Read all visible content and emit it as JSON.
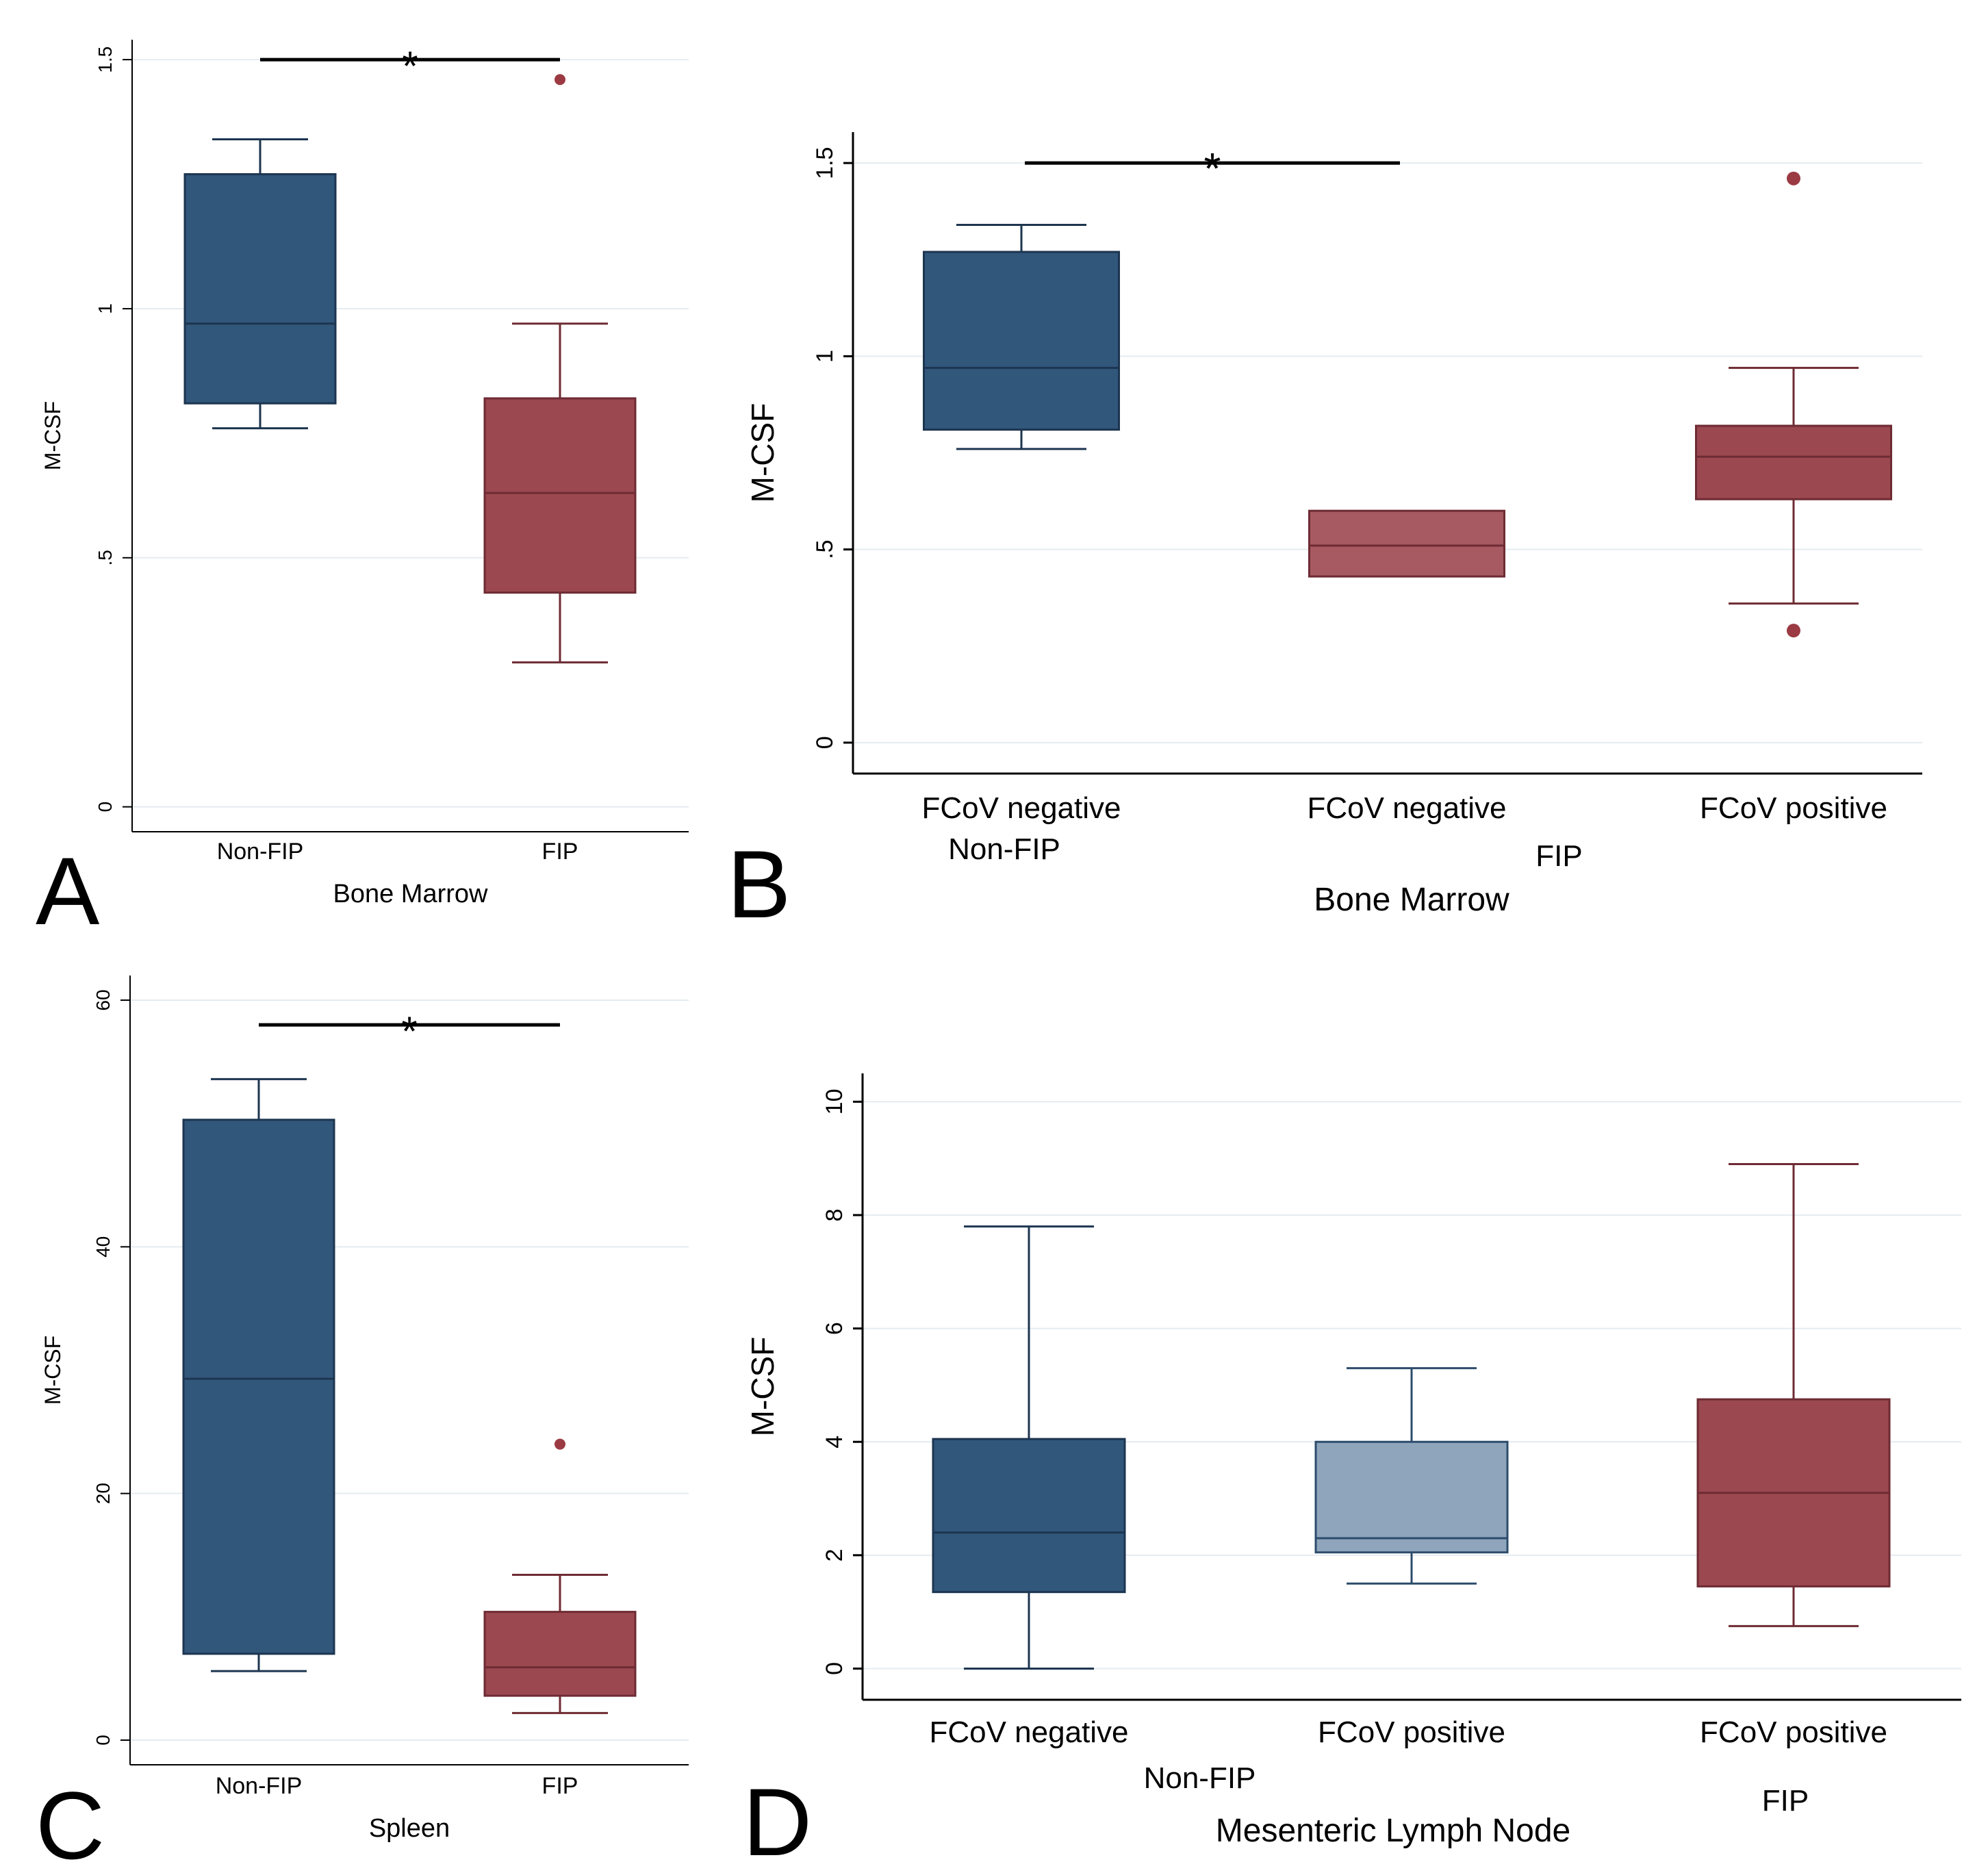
{
  "colors": {
    "nonfip": "#31577b",
    "nonfip_light": "#8fa5bb",
    "fip": "#9b4850",
    "fip_light": "#a75a62",
    "outlier": "#9b3a42",
    "axis": "#000000",
    "grid": "#e4ecf1"
  },
  "chart_data": [
    {
      "id": "A",
      "type": "box",
      "panel_label": "A",
      "ylabel": "M-CSF",
      "xlabel": "Bone Marrow",
      "ylim": [
        -0.05,
        1.54
      ],
      "yticks": [
        0,
        0.5,
        1,
        1.5
      ],
      "ytick_labels": [
        "0",
        ".5",
        "1",
        "1.5"
      ],
      "grid": true,
      "categories": [
        "Non-FIP",
        "FIP"
      ],
      "group_labels": [],
      "boxes": [
        {
          "name": "Non-FIP",
          "color": "#31577b",
          "min": 0.76,
          "q1": 0.81,
          "median": 0.97,
          "q3": 1.27,
          "max": 1.34,
          "outliers": []
        },
        {
          "name": "FIP",
          "color": "#9b4850",
          "min": 0.29,
          "q1": 0.43,
          "median": 0.63,
          "q3": 0.82,
          "max": 0.97,
          "outliers": [
            1.46
          ]
        }
      ],
      "significance": [
        {
          "from": 0,
          "to": 1,
          "label": "*",
          "y": 1.5
        }
      ]
    },
    {
      "id": "B",
      "type": "box",
      "panel_label": "B",
      "ylabel": "M-CSF",
      "xlabel": "Bone Marrow",
      "ylim": [
        -0.08,
        1.58
      ],
      "yticks": [
        0,
        0.5,
        1,
        1.5
      ],
      "ytick_labels": [
        "0",
        ".5",
        "1",
        "1.5"
      ],
      "grid": true,
      "categories": [
        "FCoV negative",
        "FCoV negative",
        "FCoV positive"
      ],
      "group_labels": [
        {
          "label": "Non-FIP",
          "over": [
            0
          ]
        },
        {
          "label": "FIP",
          "over": [
            1,
            2
          ]
        }
      ],
      "boxes": [
        {
          "name": "FCoV negative",
          "color": "#31577b",
          "min": 0.76,
          "q1": 0.81,
          "median": 0.97,
          "q3": 1.27,
          "max": 1.34,
          "outliers": []
        },
        {
          "name": "FCoV negative",
          "color": "#a75a62",
          "min": 0.43,
          "q1": 0.43,
          "median": 0.51,
          "q3": 0.6,
          "max": 0.6,
          "outliers": []
        },
        {
          "name": "FCoV positive",
          "color": "#9b4850",
          "min": 0.36,
          "q1": 0.63,
          "median": 0.74,
          "q3": 0.82,
          "max": 0.97,
          "outliers": [
            1.46,
            0.29
          ]
        }
      ],
      "significance": [
        {
          "from": 0,
          "to": 1,
          "label": "*",
          "y": 1.5
        }
      ]
    },
    {
      "id": "C",
      "type": "box",
      "panel_label": "C",
      "ylabel": "M-CSF",
      "xlabel": "Spleen",
      "ylim": [
        -2,
        62
      ],
      "yticks": [
        0,
        20,
        40,
        60
      ],
      "ytick_labels": [
        "0",
        "20",
        "40",
        "60"
      ],
      "grid": true,
      "categories": [
        "Non-FIP",
        "FIP"
      ],
      "group_labels": [],
      "boxes": [
        {
          "name": "Non-FIP",
          "color": "#31577b",
          "min": 5.6,
          "q1": 7,
          "median": 29.3,
          "q3": 50.3,
          "max": 53.6,
          "outliers": []
        },
        {
          "name": "FIP",
          "color": "#9b4850",
          "min": 2.2,
          "q1": 3.6,
          "median": 5.9,
          "q3": 10.4,
          "max": 13.4,
          "outliers": [
            24
          ]
        }
      ],
      "significance": [
        {
          "from": 0,
          "to": 1,
          "label": "*",
          "y": 58
        }
      ]
    },
    {
      "id": "D",
      "type": "box",
      "panel_label": "D",
      "ylabel": "M-CSF",
      "xlabel": "Mesenteric Lymph Node",
      "ylim": [
        -0.55,
        10.5
      ],
      "yticks": [
        0,
        2,
        4,
        6,
        8,
        10
      ],
      "ytick_labels": [
        "0",
        "2",
        "4",
        "6",
        "8",
        "10"
      ],
      "grid": true,
      "categories": [
        "FCoV negative",
        "FCoV positive",
        "FCoV positive"
      ],
      "group_labels": [
        {
          "label": "Non-FIP",
          "over": [
            0,
            1
          ]
        },
        {
          "label": "FIP",
          "over": [
            2
          ]
        }
      ],
      "boxes": [
        {
          "name": "FCoV negative",
          "color": "#31577b",
          "min": 0,
          "q1": 1.35,
          "median": 2.4,
          "q3": 4.05,
          "max": 7.8,
          "outliers": []
        },
        {
          "name": "FCoV positive",
          "color": "#8fa5bb",
          "min": 1.5,
          "q1": 2.05,
          "median": 2.3,
          "q3": 4.0,
          "max": 5.3,
          "outliers": []
        },
        {
          "name": "FCoV positive",
          "color": "#9b4850",
          "min": 0.75,
          "q1": 1.45,
          "median": 3.1,
          "q3": 4.75,
          "max": 8.9,
          "outliers": []
        }
      ],
      "significance": []
    }
  ]
}
